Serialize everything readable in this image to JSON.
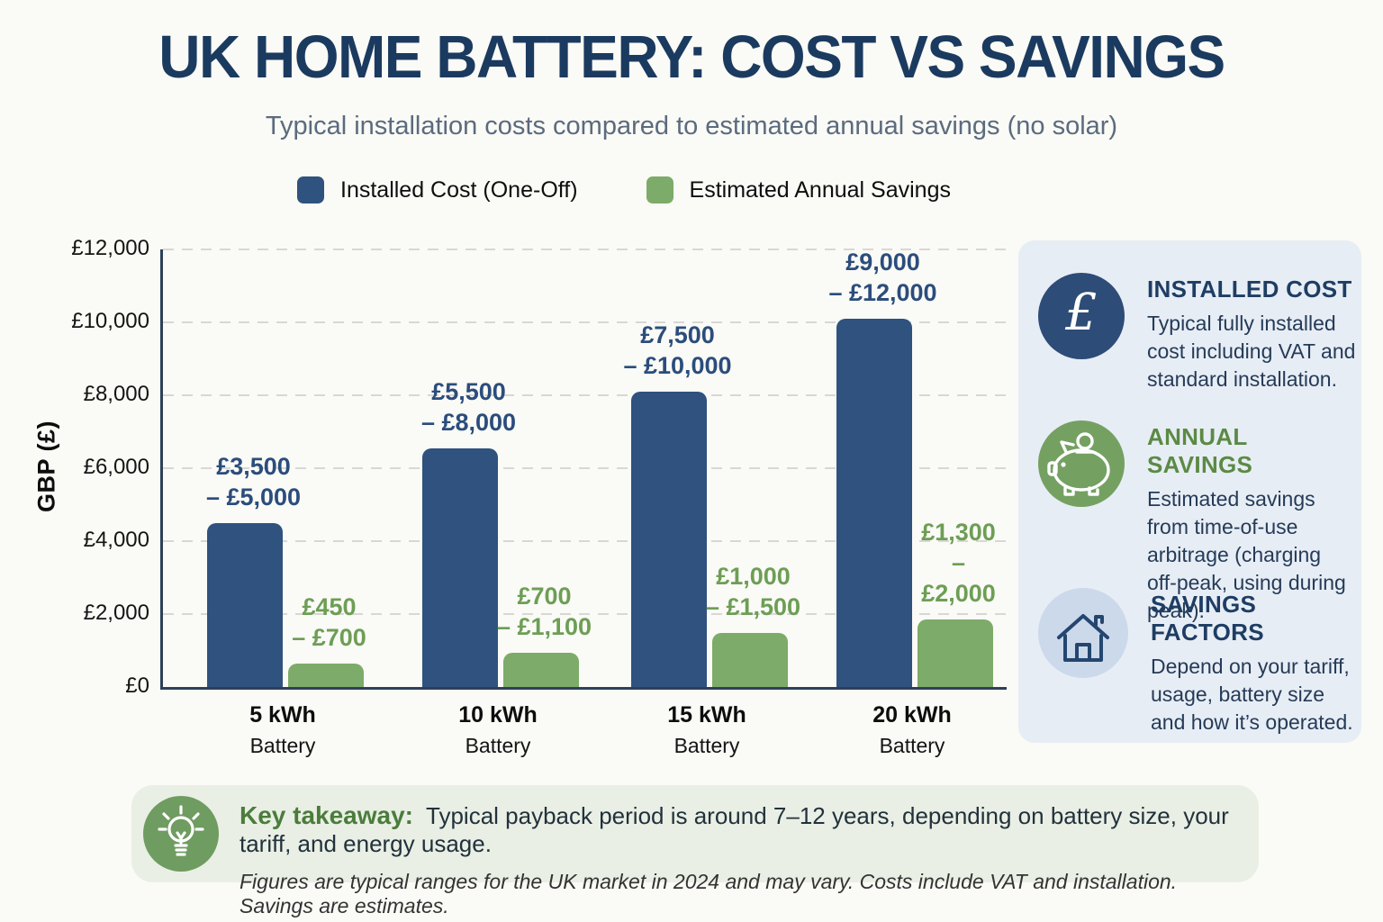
{
  "header": {
    "title": "UK HOME BATTERY: COST VS SAVINGS",
    "subtitle": "Typical installation costs compared to estimated annual savings (no solar)"
  },
  "legend": [
    {
      "label": "Installed Cost (One-Off)",
      "color": "#2f527e"
    },
    {
      "label": "Estimated Annual Savings",
      "color": "#7dab69"
    }
  ],
  "chart_data": {
    "type": "bar",
    "title": "UK HOME BATTERY: COST VS SAVINGS",
    "subtitle": "Typical installation costs compared to estimated annual savings (no solar)",
    "ylabel": "GBP (£)",
    "ylim": [
      0,
      12000
    ],
    "grid": "horizontal-dashed",
    "legend_position": "top-center",
    "yticks": [
      {
        "value": 0,
        "label": "£0"
      },
      {
        "value": 2000,
        "label": "£2,000"
      },
      {
        "value": 4000,
        "label": "£4,000"
      },
      {
        "value": 6000,
        "label": "£6,000"
      },
      {
        "value": 8000,
        "label": "£8,000"
      },
      {
        "value": 10000,
        "label": "£10,000"
      },
      {
        "value": 12000,
        "label": "£12,000"
      }
    ],
    "categories": [
      {
        "label": "5 kWh",
        "sublabel": "Battery"
      },
      {
        "label": "10 kWh",
        "sublabel": "Battery"
      },
      {
        "label": "15 kWh",
        "sublabel": "Battery"
      },
      {
        "label": "20 kWh",
        "sublabel": "Battery"
      }
    ],
    "series": [
      {
        "name": "Installed Cost (One-Off)",
        "color": "#2f527e",
        "label_color": "#2b4d7c",
        "ranges_gbp": [
          [
            3500,
            5000
          ],
          [
            5500,
            8000
          ],
          [
            7500,
            10000
          ],
          [
            9000,
            12000
          ]
        ],
        "bar_labels": [
          "£3,500\n– £5,000",
          "£5,500\n– £8,000",
          "£7,500\n– £10,000",
          "£9,000\n– £12,000"
        ],
        "plotted_values": [
          4500,
          6550,
          8100,
          10100
        ]
      },
      {
        "name": "Estimated Annual Savings",
        "color": "#7dab69",
        "label_color": "#6d9e55",
        "ranges_gbp": [
          [
            450,
            700
          ],
          [
            700,
            1100
          ],
          [
            1000,
            1500
          ],
          [
            1300,
            2000
          ]
        ],
        "bar_labels": [
          "£450\n– £700",
          "£700\n– £1,100",
          "£1,000\n– £1,500",
          "£1,300\n– £2,000"
        ],
        "plotted_values": [
          640,
          950,
          1480,
          1850
        ]
      }
    ]
  },
  "sidebar": {
    "cards": [
      {
        "icon": "pound-icon",
        "icon_bg": "#2d4c77",
        "title": "INSTALLED COST",
        "title_color": "#1e3d63",
        "body": "Typical fully installed cost including VAT and standard installation."
      },
      {
        "icon": "piggy-bank-icon",
        "icon_bg": "#74a162",
        "title": "ANNUAL SAVINGS",
        "title_color": "#5b8a44",
        "body": "Estimated savings from time-of-use arbitrage (charging off-peak, using during peak)."
      },
      {
        "icon": "house-icon",
        "icon_bg": "#ccd9eb",
        "title": "SAVINGS FACTORS",
        "title_color": "#1e3d63",
        "body": "Depend on your tariff, usage, battery size and how it’s operated."
      }
    ]
  },
  "takeaway": {
    "label": "Key takeaway:",
    "text": "Typical payback period is around 7–12 years, depending on battery size, your tariff, and energy usage.",
    "note": "Figures are typical ranges for the UK market in 2024 and may vary. Costs include VAT and installation. Savings are estimates.",
    "icon": "lightbulb-icon",
    "icon_bg": "#6f9c60"
  }
}
